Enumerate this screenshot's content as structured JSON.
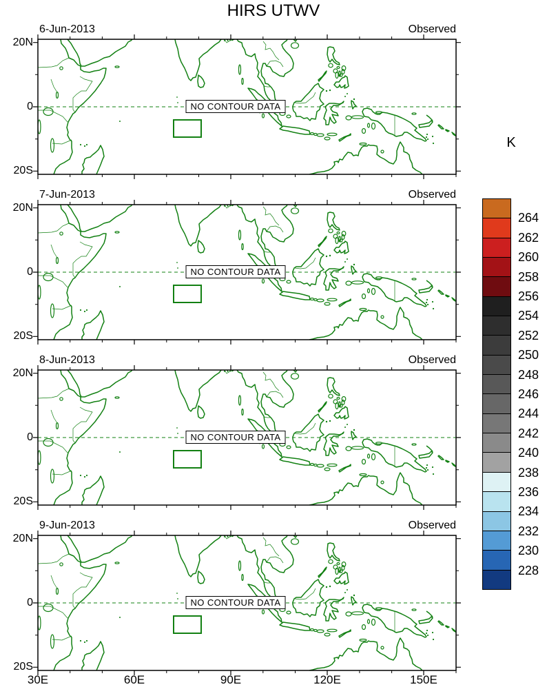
{
  "title": "HIRS UTWV",
  "colors": {
    "map_green": "#128012",
    "axis_black": "#000000",
    "background": "#ffffff"
  },
  "panels": [
    {
      "date": "6-Jun-2013",
      "source_label": "Observed",
      "no_data_label": "NO CONTOUR DATA"
    },
    {
      "date": "7-Jun-2013",
      "source_label": "Observed",
      "no_data_label": "NO CONTOUR DATA"
    },
    {
      "date": "8-Jun-2013",
      "source_label": "Observed",
      "no_data_label": "NO CONTOUR DATA"
    },
    {
      "date": "9-Jun-2013",
      "source_label": "Observed",
      "no_data_label": "NO CONTOUR DATA"
    }
  ],
  "axes": {
    "lat_ticks": [
      "20N",
      "0",
      "20S"
    ],
    "lon_ticks": [
      "30E",
      "60E",
      "90E",
      "120E",
      "150E"
    ]
  },
  "colorbar": {
    "unit": "K",
    "order": "top_to_bottom",
    "labels": [
      "264",
      "262",
      "260",
      "258",
      "256",
      "254",
      "252",
      "250",
      "248",
      "246",
      "244",
      "242",
      "240",
      "238",
      "236",
      "234",
      "232",
      "230",
      "228"
    ],
    "colors": [
      "#c96a1f",
      "#e03a1c",
      "#cc1f1f",
      "#a31216",
      "#6f0c10",
      "#1f1f1f",
      "#2e2e2e",
      "#3c3c3c",
      "#4a4a4a",
      "#585858",
      "#676767",
      "#777777",
      "#8a8a8a",
      "#a2a2a2",
      "#def2f4",
      "#b9e3ef",
      "#8cc6e4",
      "#549bd5",
      "#2766b4",
      "#123a80"
    ]
  },
  "chart_data": {
    "type": "map",
    "title": "HIRS UTWV",
    "unit": "K",
    "panels": [
      {
        "date": "6-Jun-2013",
        "source": "Observed",
        "data_status": "NO CONTOUR DATA"
      },
      {
        "date": "7-Jun-2013",
        "source": "Observed",
        "data_status": "NO CONTOUR DATA"
      },
      {
        "date": "8-Jun-2013",
        "source": "Observed",
        "data_status": "NO CONTOUR DATA"
      },
      {
        "date": "9-Jun-2013",
        "source": "Observed",
        "data_status": "NO CONTOUR DATA"
      }
    ],
    "map_extent": {
      "lon_min": 30,
      "lon_max": 160,
      "lat_min": -21,
      "lat_max": 21
    },
    "lon_tick_interval_deg": 30,
    "lon_minor_tick_interval_deg": 10,
    "lat_tick_interval_deg": 20,
    "equator_line": "dashed",
    "coastline_color": "#128012",
    "highlight_box": {
      "lon_min": 72.3,
      "lon_max": 80.8,
      "lat_min": -9.5,
      "lat_max": -4.0
    },
    "colorbar_levels": [
      228,
      230,
      232,
      234,
      236,
      238,
      240,
      242,
      244,
      246,
      248,
      250,
      252,
      254,
      256,
      258,
      260,
      262,
      264
    ],
    "legend_position": "right",
    "grid": false
  }
}
